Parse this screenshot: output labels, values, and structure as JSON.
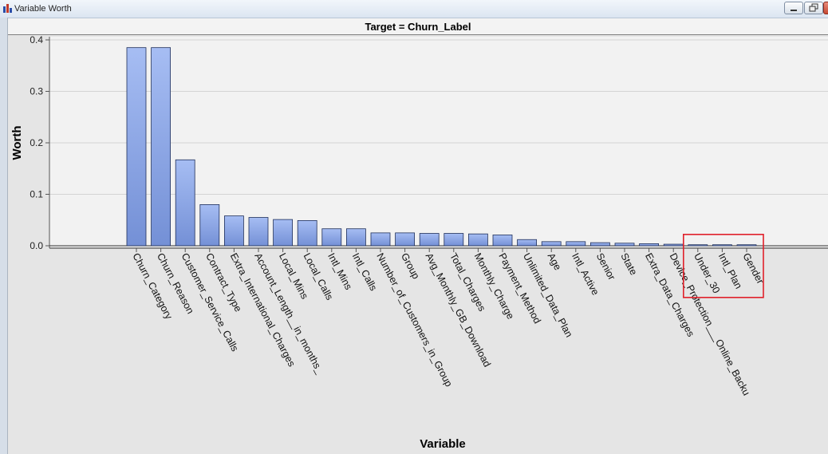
{
  "window": {
    "title": "Variable Worth"
  },
  "chart_data": {
    "type": "bar",
    "title": "Target = Churn_Label",
    "xlabel": "Variable",
    "ylabel": "Worth",
    "ylim": [
      0,
      0.4
    ],
    "yticks": [
      "0.0",
      "0.1",
      "0.2",
      "0.3",
      "0.4"
    ],
    "grid": true,
    "categories": [
      "Churn_Category",
      "Churn_Reason",
      "Customer_Service_Calls",
      "Contract_Type",
      "Extra_International_Charges",
      "Account_Length__in_months_",
      "Local_Mins",
      "Local_Calls",
      "Intl_Mins",
      "Intl_Calls",
      "Number_of_Customers_in_Group",
      "Group",
      "Avg_Monthly_GB_Download",
      "Total_Charges",
      "Monthly_Charge",
      "Payment_Method",
      "Unlimited_Data_Plan",
      "Age",
      "Intl_Active",
      "Senior",
      "State",
      "Extra_Data_Charges",
      "Device_Protection___Online_Backu",
      "Under_30",
      "Intl_Plan",
      "Gender"
    ],
    "values": [
      0.385,
      0.385,
      0.167,
      0.08,
      0.058,
      0.055,
      0.051,
      0.049,
      0.033,
      0.033,
      0.025,
      0.025,
      0.024,
      0.024,
      0.023,
      0.021,
      0.012,
      0.008,
      0.008,
      0.006,
      0.005,
      0.004,
      0.003,
      0.002,
      0.002,
      0.002
    ],
    "bar_color": "#8aa8e8",
    "highlight": {
      "categories": [
        "Under_30",
        "Intl_Plan",
        "Gender"
      ],
      "color": "#e0202a"
    }
  }
}
